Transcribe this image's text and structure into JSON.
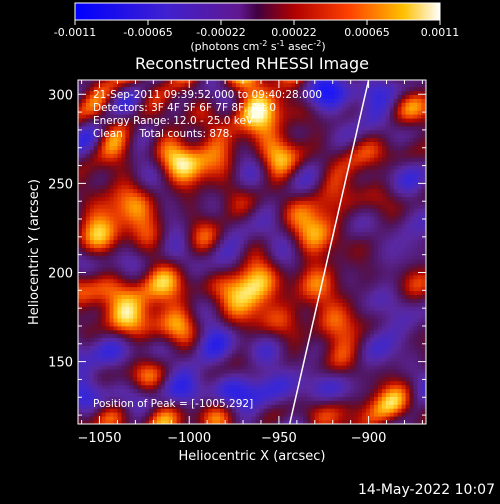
{
  "chart_data": {
    "type": "heatmap",
    "title": "Reconstructed RHESSI Image",
    "xlabel": "Heliocentric X (arcsec)",
    "ylabel": "Heliocentric Y (arcsec)",
    "xlim": [
      -1062,
      -868
    ],
    "ylim": [
      115,
      308
    ],
    "x_ticks": [
      -1050,
      -1000,
      -950,
      -900
    ],
    "y_ticks": [
      150,
      200,
      250,
      300
    ],
    "colorbar": {
      "label_html": "(photons cm<sup>-2</sup> s<sup>-1</sup> asec<sup>-2</sup>)",
      "range": [
        -0.0011,
        0.0011
      ],
      "ticks": [
        "-0.0011",
        "-0.00065",
        "-0.00022",
        "0.00022",
        "0.00065",
        "0.0011"
      ]
    },
    "annotations": [
      "21-Sep-2011 09:39:52.000 to 09:40:28.000",
      "Detectors: 3F 4F 5F 6F 7F 8F, Att 0",
      "Energy Range: 12.0 - 25.0 keV",
      "Clean     Total counts: 878."
    ],
    "peak_label": "Position of Peak = [-1005,292]",
    "peak": [
      -1005,
      292
    ],
    "limb_line": {
      "x1": -944,
      "y1": 115,
      "x2": -900,
      "y2": 308
    },
    "bright_sources": [
      {
        "x": -1000,
        "y": 260,
        "level": 0.9
      },
      {
        "x": -967,
        "y": 185,
        "level": 1.0
      },
      {
        "x": -1043,
        "y": 232,
        "level": 0.75
      },
      {
        "x": -1050,
        "y": 180,
        "level": 0.7
      },
      {
        "x": -1020,
        "y": 178,
        "level": 0.6
      },
      {
        "x": -920,
        "y": 170,
        "level": 0.7
      },
      {
        "x": -905,
        "y": 255,
        "level": 0.6
      },
      {
        "x": -885,
        "y": 130,
        "level": 0.8
      },
      {
        "x": -960,
        "y": 290,
        "level": 0.55
      },
      {
        "x": -925,
        "y": 225,
        "level": 0.65
      }
    ],
    "dark_regions": [
      {
        "x": -1000,
        "y": 140,
        "level": 0.9
      },
      {
        "x": -920,
        "y": 295,
        "level": 0.8
      },
      {
        "x": -1048,
        "y": 150,
        "level": 0.5
      },
      {
        "x": -1030,
        "y": 210,
        "level": 0.45
      },
      {
        "x": -960,
        "y": 220,
        "level": 0.45
      },
      {
        "x": -940,
        "y": 140,
        "level": 0.5
      }
    ]
  },
  "footer": {
    "date": "14-May-2022 10:07"
  }
}
